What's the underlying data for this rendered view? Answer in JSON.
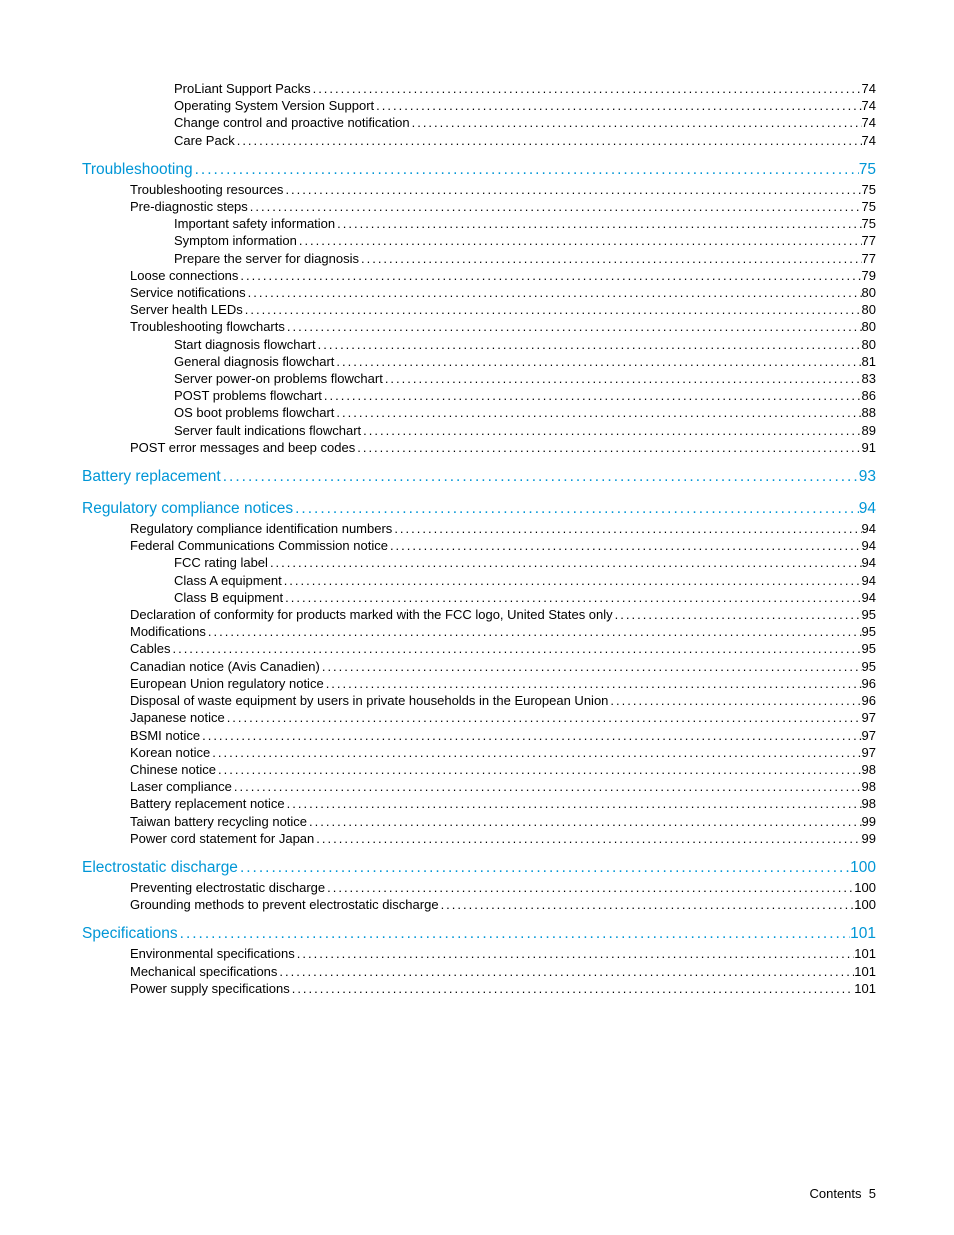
{
  "footer": {
    "label": "Contents",
    "page": "5"
  },
  "colors": {
    "heading": "#0096d6",
    "body": "#000000",
    "background": "#ffffff"
  },
  "typography": {
    "heading_fontsize": 15.5,
    "body_fontsize": 13,
    "font_family": "Futura / Century Gothic style sans-serif"
  },
  "toc": [
    {
      "level": 2,
      "label": "ProLiant Support Packs",
      "page": "74"
    },
    {
      "level": 2,
      "label": "Operating System Version Support",
      "page": "74"
    },
    {
      "level": 2,
      "label": "Change control and proactive notification",
      "page": "74"
    },
    {
      "level": 2,
      "label": "Care Pack",
      "page": "74"
    },
    {
      "level": 0,
      "label": "Troubleshooting",
      "page": "75"
    },
    {
      "level": 1,
      "label": "Troubleshooting resources",
      "page": "75"
    },
    {
      "level": 1,
      "label": "Pre-diagnostic steps",
      "page": "75"
    },
    {
      "level": 2,
      "label": "Important safety information",
      "page": "75"
    },
    {
      "level": 2,
      "label": "Symptom information",
      "page": "77"
    },
    {
      "level": 2,
      "label": "Prepare the server for diagnosis",
      "page": "77"
    },
    {
      "level": 1,
      "label": "Loose connections",
      "page": "79"
    },
    {
      "level": 1,
      "label": "Service notifications",
      "page": "80"
    },
    {
      "level": 1,
      "label": "Server health LEDs",
      "page": "80"
    },
    {
      "level": 1,
      "label": "Troubleshooting flowcharts",
      "page": "80"
    },
    {
      "level": 2,
      "label": "Start diagnosis flowchart",
      "page": "80"
    },
    {
      "level": 2,
      "label": "General diagnosis flowchart",
      "page": "81"
    },
    {
      "level": 2,
      "label": "Server power-on problems flowchart",
      "page": "83"
    },
    {
      "level": 2,
      "label": "POST problems flowchart",
      "page": "86"
    },
    {
      "level": 2,
      "label": "OS boot problems flowchart",
      "page": "88"
    },
    {
      "level": 2,
      "label": "Server fault indications flowchart",
      "page": "89"
    },
    {
      "level": 1,
      "label": "POST error messages and beep codes",
      "page": "91"
    },
    {
      "level": 0,
      "label": "Battery replacement",
      "page": "93"
    },
    {
      "level": 0,
      "label": "Regulatory compliance notices",
      "page": "94"
    },
    {
      "level": 1,
      "label": "Regulatory compliance identification numbers",
      "page": "94"
    },
    {
      "level": 1,
      "label": "Federal Communications Commission notice",
      "page": "94"
    },
    {
      "level": 2,
      "label": "FCC rating label",
      "page": "94"
    },
    {
      "level": 2,
      "label": "Class A equipment",
      "page": "94"
    },
    {
      "level": 2,
      "label": "Class B equipment",
      "page": "94"
    },
    {
      "level": 1,
      "label": "Declaration of conformity for products marked with the FCC logo, United States only",
      "page": "95"
    },
    {
      "level": 1,
      "label": "Modifications",
      "page": "95"
    },
    {
      "level": 1,
      "label": "Cables",
      "page": "95"
    },
    {
      "level": 1,
      "label": "Canadian notice (Avis Canadien)",
      "page": "95"
    },
    {
      "level": 1,
      "label": "European Union regulatory notice",
      "page": "96"
    },
    {
      "level": 1,
      "label": "Disposal of waste equipment by users in private households in the European Union",
      "page": "96"
    },
    {
      "level": 1,
      "label": "Japanese notice",
      "page": "97"
    },
    {
      "level": 1,
      "label": "BSMI notice",
      "page": "97"
    },
    {
      "level": 1,
      "label": "Korean notice",
      "page": "97"
    },
    {
      "level": 1,
      "label": "Chinese notice",
      "page": "98"
    },
    {
      "level": 1,
      "label": "Laser compliance",
      "page": "98"
    },
    {
      "level": 1,
      "label": "Battery replacement notice",
      "page": "98"
    },
    {
      "level": 1,
      "label": "Taiwan battery recycling notice",
      "page": "99"
    },
    {
      "level": 1,
      "label": "Power cord statement for Japan",
      "page": "99"
    },
    {
      "level": 0,
      "label": "Electrostatic discharge",
      "page": "100"
    },
    {
      "level": 1,
      "label": "Preventing electrostatic discharge",
      "page": "100"
    },
    {
      "level": 1,
      "label": "Grounding methods to prevent electrostatic discharge",
      "page": "100"
    },
    {
      "level": 0,
      "label": "Specifications",
      "page": "101"
    },
    {
      "level": 1,
      "label": "Environmental specifications",
      "page": "101"
    },
    {
      "level": 1,
      "label": "Mechanical specifications",
      "page": "101"
    },
    {
      "level": 1,
      "label": "Power supply specifications",
      "page": "101"
    }
  ]
}
